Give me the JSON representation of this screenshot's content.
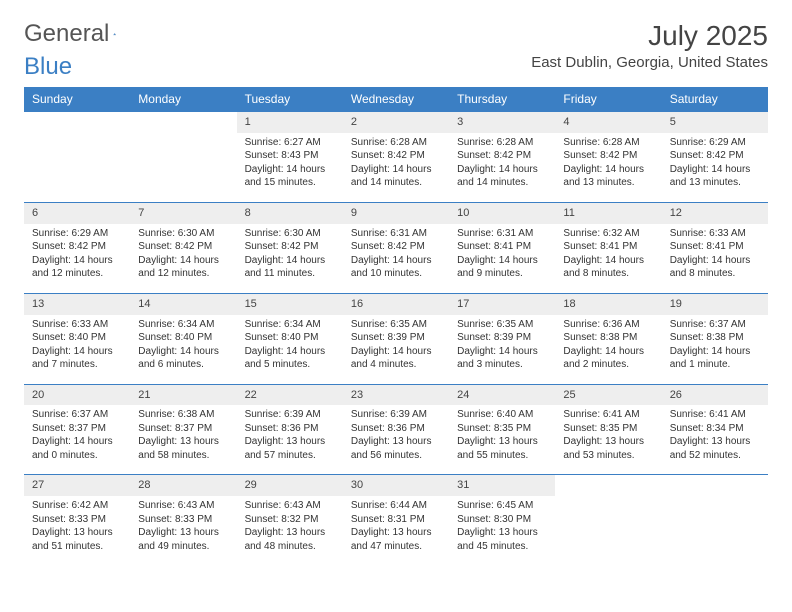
{
  "logo": {
    "text1": "General",
    "text2": "Blue"
  },
  "title": "July 2025",
  "location": "East Dublin, Georgia, United States",
  "colors": {
    "header_bg": "#3b7fc4",
    "header_text": "#ffffff",
    "daynum_bg": "#eeeeee",
    "border": "#3b7fc4",
    "body_text": "#333333"
  },
  "day_headers": [
    "Sunday",
    "Monday",
    "Tuesday",
    "Wednesday",
    "Thursday",
    "Friday",
    "Saturday"
  ],
  "weeks": [
    [
      null,
      null,
      {
        "n": "1",
        "sr": "6:27 AM",
        "ss": "8:43 PM",
        "dl": "14 hours and 15 minutes."
      },
      {
        "n": "2",
        "sr": "6:28 AM",
        "ss": "8:42 PM",
        "dl": "14 hours and 14 minutes."
      },
      {
        "n": "3",
        "sr": "6:28 AM",
        "ss": "8:42 PM",
        "dl": "14 hours and 14 minutes."
      },
      {
        "n": "4",
        "sr": "6:28 AM",
        "ss": "8:42 PM",
        "dl": "14 hours and 13 minutes."
      },
      {
        "n": "5",
        "sr": "6:29 AM",
        "ss": "8:42 PM",
        "dl": "14 hours and 13 minutes."
      }
    ],
    [
      {
        "n": "6",
        "sr": "6:29 AM",
        "ss": "8:42 PM",
        "dl": "14 hours and 12 minutes."
      },
      {
        "n": "7",
        "sr": "6:30 AM",
        "ss": "8:42 PM",
        "dl": "14 hours and 12 minutes."
      },
      {
        "n": "8",
        "sr": "6:30 AM",
        "ss": "8:42 PM",
        "dl": "14 hours and 11 minutes."
      },
      {
        "n": "9",
        "sr": "6:31 AM",
        "ss": "8:42 PM",
        "dl": "14 hours and 10 minutes."
      },
      {
        "n": "10",
        "sr": "6:31 AM",
        "ss": "8:41 PM",
        "dl": "14 hours and 9 minutes."
      },
      {
        "n": "11",
        "sr": "6:32 AM",
        "ss": "8:41 PM",
        "dl": "14 hours and 8 minutes."
      },
      {
        "n": "12",
        "sr": "6:33 AM",
        "ss": "8:41 PM",
        "dl": "14 hours and 8 minutes."
      }
    ],
    [
      {
        "n": "13",
        "sr": "6:33 AM",
        "ss": "8:40 PM",
        "dl": "14 hours and 7 minutes."
      },
      {
        "n": "14",
        "sr": "6:34 AM",
        "ss": "8:40 PM",
        "dl": "14 hours and 6 minutes."
      },
      {
        "n": "15",
        "sr": "6:34 AM",
        "ss": "8:40 PM",
        "dl": "14 hours and 5 minutes."
      },
      {
        "n": "16",
        "sr": "6:35 AM",
        "ss": "8:39 PM",
        "dl": "14 hours and 4 minutes."
      },
      {
        "n": "17",
        "sr": "6:35 AM",
        "ss": "8:39 PM",
        "dl": "14 hours and 3 minutes."
      },
      {
        "n": "18",
        "sr": "6:36 AM",
        "ss": "8:38 PM",
        "dl": "14 hours and 2 minutes."
      },
      {
        "n": "19",
        "sr": "6:37 AM",
        "ss": "8:38 PM",
        "dl": "14 hours and 1 minute."
      }
    ],
    [
      {
        "n": "20",
        "sr": "6:37 AM",
        "ss": "8:37 PM",
        "dl": "14 hours and 0 minutes."
      },
      {
        "n": "21",
        "sr": "6:38 AM",
        "ss": "8:37 PM",
        "dl": "13 hours and 58 minutes."
      },
      {
        "n": "22",
        "sr": "6:39 AM",
        "ss": "8:36 PM",
        "dl": "13 hours and 57 minutes."
      },
      {
        "n": "23",
        "sr": "6:39 AM",
        "ss": "8:36 PM",
        "dl": "13 hours and 56 minutes."
      },
      {
        "n": "24",
        "sr": "6:40 AM",
        "ss": "8:35 PM",
        "dl": "13 hours and 55 minutes."
      },
      {
        "n": "25",
        "sr": "6:41 AM",
        "ss": "8:35 PM",
        "dl": "13 hours and 53 minutes."
      },
      {
        "n": "26",
        "sr": "6:41 AM",
        "ss": "8:34 PM",
        "dl": "13 hours and 52 minutes."
      }
    ],
    [
      {
        "n": "27",
        "sr": "6:42 AM",
        "ss": "8:33 PM",
        "dl": "13 hours and 51 minutes."
      },
      {
        "n": "28",
        "sr": "6:43 AM",
        "ss": "8:33 PM",
        "dl": "13 hours and 49 minutes."
      },
      {
        "n": "29",
        "sr": "6:43 AM",
        "ss": "8:32 PM",
        "dl": "13 hours and 48 minutes."
      },
      {
        "n": "30",
        "sr": "6:44 AM",
        "ss": "8:31 PM",
        "dl": "13 hours and 47 minutes."
      },
      {
        "n": "31",
        "sr": "6:45 AM",
        "ss": "8:30 PM",
        "dl": "13 hours and 45 minutes."
      },
      null,
      null
    ]
  ],
  "labels": {
    "sunrise": "Sunrise:",
    "sunset": "Sunset:",
    "daylight": "Daylight:"
  }
}
